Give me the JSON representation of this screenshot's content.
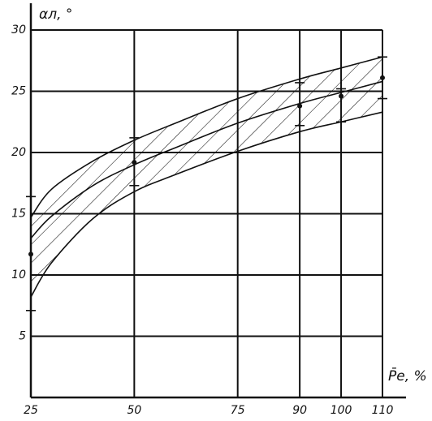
{
  "chart_data": {
    "type": "band",
    "y_label": "αл, °",
    "x_label": "P̄e, %",
    "xlim": [
      25,
      110
    ],
    "ylim": [
      0,
      30
    ],
    "xticks": [
      25,
      50,
      75,
      90,
      100,
      110
    ],
    "yticks": [
      5,
      10,
      15,
      20,
      25,
      30
    ],
    "grid": true,
    "x": [
      25,
      30,
      40,
      50,
      60,
      75,
      90,
      100,
      110
    ],
    "series": [
      {
        "name": "upper",
        "color": "#111111",
        "values": [
          14.7,
          17,
          19.3,
          21,
          22.4,
          24.4,
          26,
          26.9,
          27.8
        ]
      },
      {
        "name": "middle",
        "color": "#111111",
        "values": [
          13,
          14.8,
          17.3,
          19,
          20.4,
          22.4,
          24,
          24.9,
          25.8
        ]
      },
      {
        "name": "lower",
        "color": "#111111",
        "values": [
          8.2,
          11,
          14.6,
          16.8,
          18.2,
          20.1,
          21.7,
          22.5,
          23.3
        ]
      }
    ],
    "points": {
      "x": [
        25,
        50,
        90,
        100,
        110
      ],
      "values": [
        11.7,
        19.2,
        23.8,
        24.6,
        26.1
      ],
      "high": [
        16.4,
        21.2,
        25.7,
        25.2,
        27.8
      ],
      "low": [
        7.1,
        17.3,
        22.2,
        22.5,
        24.4
      ]
    }
  }
}
